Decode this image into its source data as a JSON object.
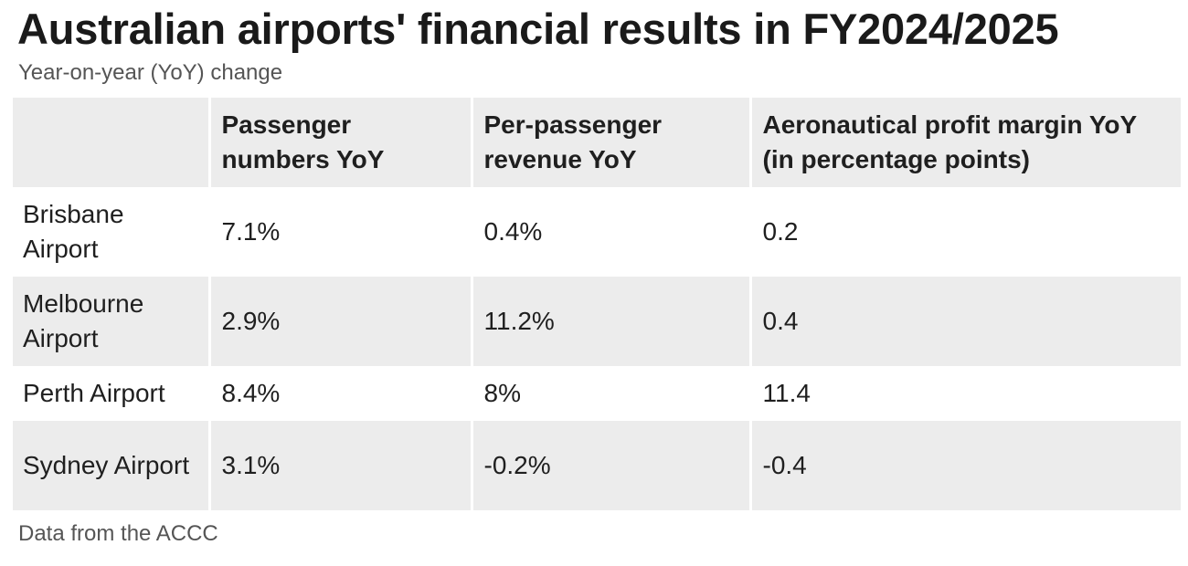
{
  "title": "Australian airports' financial results in FY2024/2025",
  "subtitle": "Year-on-year (YoY) change",
  "source": "Data from the ACCC",
  "chart_data": {
    "type": "table",
    "title": "Australian airports' financial results in FY2024/2025",
    "subtitle": "Year-on-year (YoY) change",
    "columns": [
      "",
      "Passenger numbers YoY",
      "Per-passenger revenue YoY",
      "Aeronautical profit margin YoY (in percentage points)"
    ],
    "rows": [
      {
        "airport": "Brisbane Airport",
        "passenger_numbers_yoy": "7.1%",
        "per_passenger_revenue_yoy": "0.4%",
        "aero_profit_margin_yoy": "0.2"
      },
      {
        "airport": "Melbourne Airport",
        "passenger_numbers_yoy": "2.9%",
        "per_passenger_revenue_yoy": "11.2%",
        "aero_profit_margin_yoy": "0.4"
      },
      {
        "airport": "Perth Airport",
        "passenger_numbers_yoy": "8.4%",
        "per_passenger_revenue_yoy": "8%",
        "aero_profit_margin_yoy": "11.4"
      },
      {
        "airport": "Sydney Airport",
        "passenger_numbers_yoy": "3.1%",
        "per_passenger_revenue_yoy": "-0.2%",
        "aero_profit_margin_yoy": "-0.4"
      }
    ],
    "source": "Data from the ACCC"
  },
  "colors": {
    "shaded_row": "#ececec",
    "plain_row": "#ffffff",
    "text": "#1f1f1f",
    "muted_text": "#555555"
  }
}
